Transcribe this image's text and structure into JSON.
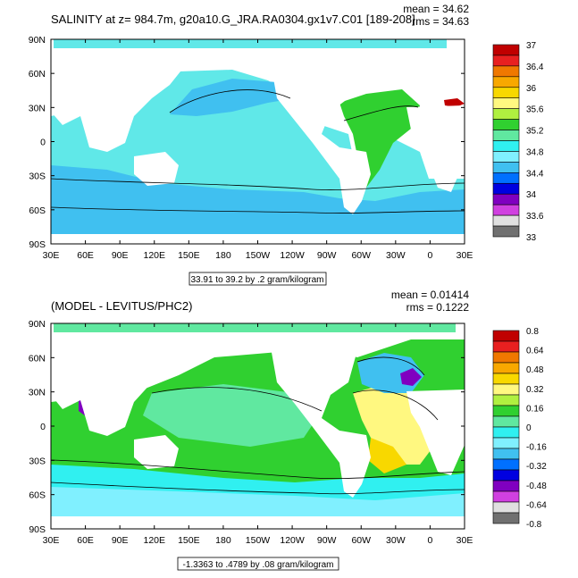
{
  "chart_data": [
    {
      "type": "contour-map",
      "title": "SALINITY at z= 984.7m, g20a10.G_JRA.RA0304.gx1v7.C01 [189-208]",
      "stats": {
        "mean": "mean = 34.62",
        "rms": "rms = 34.63"
      },
      "lon_ticks": [
        "30E",
        "60E",
        "90E",
        "120E",
        "150E",
        "180",
        "150W",
        "120W",
        "90W",
        "60W",
        "30W",
        "0",
        "30E"
      ],
      "lat_ticks": [
        "90N",
        "60N",
        "30N",
        "0",
        "30S",
        "60S",
        "90S"
      ],
      "contour_info": "33.91 to 39.2 by .2 gram/kilogram",
      "colorbar": {
        "labels": [
          "37",
          "36.4",
          "36",
          "35.6",
          "35.2",
          "34.8",
          "34.4",
          "34",
          "33.6",
          "33"
        ],
        "colors": [
          "#c00000",
          "#e82020",
          "#f07800",
          "#f8a800",
          "#f8d800",
          "#fff880",
          "#b0f040",
          "#30d030",
          "#60e8a0",
          "#30f0f0",
          "#80f0ff",
          "#40c0f0",
          "#0070ff",
          "#0000e0",
          "#8000c0",
          "#d040e0",
          "#e0e0e0",
          "#707070"
        ]
      }
    },
    {
      "type": "contour-map",
      "title": "(MODEL - LEVITUS/PHC2)",
      "stats": {
        "mean": "mean = 0.01414",
        "rms": "rms = 0.1222"
      },
      "lon_ticks": [
        "30E",
        "60E",
        "90E",
        "120E",
        "150E",
        "180",
        "150W",
        "120W",
        "90W",
        "60W",
        "30W",
        "0",
        "30E"
      ],
      "lat_ticks": [
        "90N",
        "60N",
        "30N",
        "0",
        "30S",
        "60S",
        "90S"
      ],
      "contour_info": "-1.3363 to .4789 by .08 gram/kilogram",
      "colorbar": {
        "labels": [
          "0.8",
          "0.64",
          "0.48",
          "0.32",
          "0.16",
          "0",
          "-0.16",
          "-0.32",
          "-0.48",
          "-0.64",
          "-0.8"
        ],
        "colors": [
          "#c00000",
          "#e82020",
          "#f07800",
          "#f8a800",
          "#f8d800",
          "#fff880",
          "#b0f040",
          "#30d030",
          "#60e8a0",
          "#30f0f0",
          "#80f0ff",
          "#40c0f0",
          "#0070ff",
          "#0000e0",
          "#8000c0",
          "#d040e0",
          "#e0e0e0",
          "#707070"
        ]
      }
    }
  ]
}
